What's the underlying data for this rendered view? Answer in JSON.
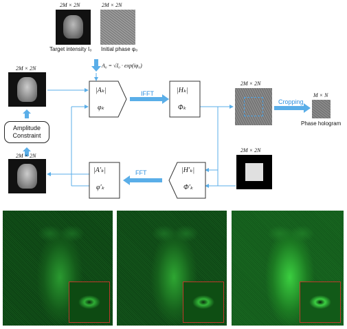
{
  "labels": {
    "size_top_left": "2M × 2N",
    "size_top_right": "2M × 2N",
    "size_left_upper": "2M × 2N",
    "size_left_lower": "2M × 2N",
    "size_right_upper": "2M × 2N",
    "size_right_lower": "2M × 2N",
    "size_hologram": "M × N",
    "target_intensity": "Target intensity I₀",
    "initial_phase": "Initial phase φ₀",
    "phase_hologram": "Phase hologram",
    "amplitude_line1": "Amplitude",
    "amplitude_line2": "Constraint"
  },
  "equation": "A₀ = √I₀ · exp(iφ₀)",
  "boxes": {
    "box1_top": "|Aₖ|",
    "box1_bottom": "φₖ",
    "box2_top": "|Hₖ|",
    "box2_bottom": "Φₖ",
    "box3_top": "|H′ₖ|",
    "box3_bottom": "Φ′ₖ",
    "box4_top": "|A′ₖ|",
    "box4_bottom": "φ′ₖ"
  },
  "operations": {
    "ifft": "IFFT",
    "fft": "FFT",
    "cropping": "Cropping"
  },
  "colors": {
    "arrow_blue": "#5aaee8",
    "text_blue": "#2d8fdf",
    "green_dark": "#0a3a12",
    "green_bright": "#2ecf3a",
    "inset_border": "#c0392b"
  }
}
